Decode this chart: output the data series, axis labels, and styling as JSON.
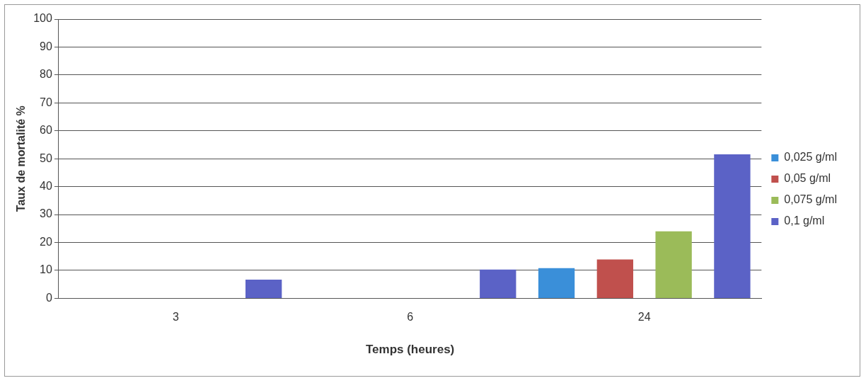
{
  "chart_data": {
    "type": "bar",
    "xlabel": "Temps (heures)",
    "ylabel": "Taux de mortalité %",
    "categories": [
      "3",
      "6",
      "24"
    ],
    "series": [
      {
        "name": "0,025 g/ml",
        "color": "#3a8fd9",
        "values": [
          0,
          0,
          10.8
        ]
      },
      {
        "name": "0,05 g/ml",
        "color": "#c0504d",
        "values": [
          0,
          0,
          13.9
        ]
      },
      {
        "name": "0,075 g/ml",
        "color": "#9bbb59",
        "values": [
          0,
          0,
          24
        ]
      },
      {
        "name": "0,1 g/ml",
        "color": "#5b62c6",
        "values": [
          6.7,
          10.3,
          51.6
        ]
      }
    ],
    "ylim": [
      0,
      100
    ],
    "yticks": [
      0,
      10,
      20,
      30,
      40,
      50,
      60,
      70,
      80,
      90,
      100
    ],
    "grid": "y",
    "legend": "right"
  }
}
